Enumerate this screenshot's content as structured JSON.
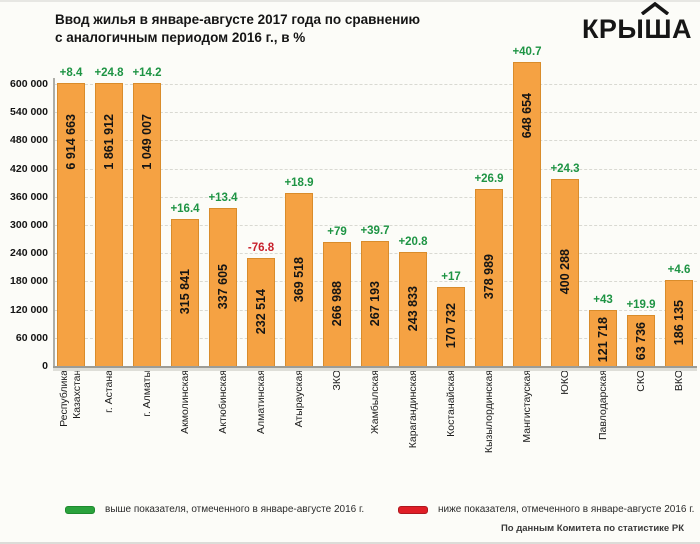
{
  "header": {
    "title_line1": "Ввод жилья в январе-августе 2017 года по сравнению",
    "title_line2": "с аналогичным периодом 2016 г., в %",
    "logo_prefix": "КРЫ",
    "logo_sh": "Ш",
    "logo_suffix": "А"
  },
  "legend": {
    "up_label": "выше показателя, отмеченного в январе-августе 2016 г.",
    "down_label": "ниже показателя, отмеченного в январе-августе 2016 г.",
    "up_color": "#2aa23c",
    "down_color": "#e01e26"
  },
  "source": "По данным Комитета по статистике РК",
  "chart_data": {
    "type": "bar",
    "title": "Ввод жилья в январе-августе 2017 года по сравнению с аналогичным периодом 2016 г., в %",
    "xlabel": "",
    "ylabel": "",
    "ylim": [
      0,
      600000
    ],
    "grid": true,
    "legend_position": "bottom",
    "bar_color": "#f5a243",
    "bar_border_color": "#d98c2b",
    "positive_color": "#1e9444",
    "negative_color": "#c8202c",
    "yticks": [
      0,
      60000,
      120000,
      180000,
      240000,
      300000,
      360000,
      420000,
      480000,
      540000,
      600000
    ],
    "ytick_labels": [
      "0",
      "60 000",
      "120 000",
      "180 000",
      "240 000",
      "300 000",
      "360 000",
      "420 000",
      "480 000",
      "540 000",
      "600 000"
    ],
    "categories": [
      "Республика\nКазахстан",
      "г. Астана",
      "г. Алматы",
      "Акмолинская",
      "Актюбинская",
      "Алматинская",
      "Атырауская",
      "ЗКО",
      "Жамбылская",
      "Карагандинская",
      "Костанайская",
      "Кызылординская",
      "Мангистауская",
      "ЮКО",
      "Павлодарская",
      "СКО",
      "ВКО"
    ],
    "values": [
      6914663,
      1861912,
      1049007,
      315841,
      337605,
      232514,
      369518,
      266988,
      267193,
      243833,
      170732,
      378989,
      648654,
      400288,
      121718,
      63736,
      186135
    ],
    "value_labels": [
      "6 914 663",
      "1 861 912",
      "1 049 007",
      "315 841",
      "337 605",
      "232 514",
      "369 518",
      "266 988",
      "267 193",
      "243 833",
      "170 732",
      "378 989",
      "648 654",
      "400 288",
      "121 718",
      "63 736",
      "186 135"
    ],
    "pct_change": [
      "+8.4",
      "+24.8",
      "+14.2",
      "+16.4",
      "+13.4",
      "-76.8",
      "+18.9",
      "+79",
      "+39.7",
      "+20.8",
      "+17",
      "+26.9",
      "+40.7",
      "+24.3",
      "+43",
      "+19.9",
      "+4.6"
    ]
  }
}
